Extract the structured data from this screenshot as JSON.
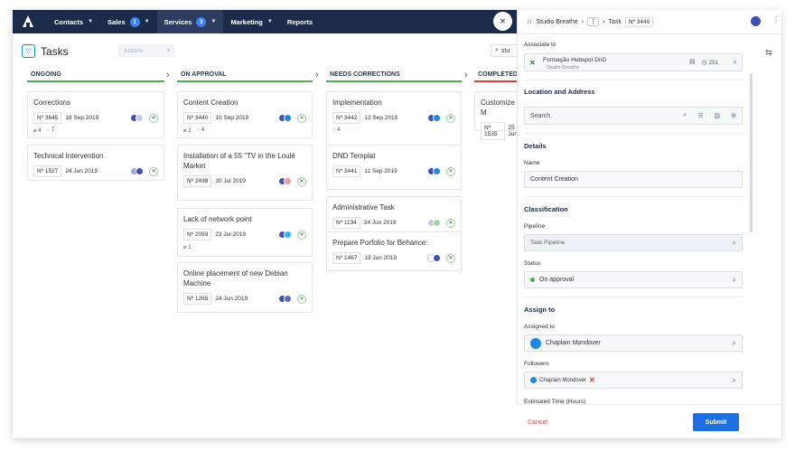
{
  "nav": {
    "items": [
      {
        "label": "Contacts",
        "badge": null,
        "has_chevron": true
      },
      {
        "label": "Sales",
        "badge": "1",
        "has_chevron": true
      },
      {
        "label": "Services",
        "badge": "3",
        "has_chevron": true,
        "active": true
      },
      {
        "label": "Marketing",
        "badge": null,
        "has_chevron": true
      },
      {
        "label": "Reports",
        "badge": null,
        "has_chevron": false
      }
    ],
    "close_glyph": "×"
  },
  "board": {
    "title": "Tasks",
    "actions_placeholder": "Actions",
    "search_value": "stu",
    "columns": [
      {
        "label": "ONGOING",
        "color": "green"
      },
      {
        "label": "ON APPROVAL",
        "color": "green"
      },
      {
        "label": "NEEDS CORRECTIONS",
        "color": "green"
      },
      {
        "label": "COMPLETED",
        "color": "red"
      }
    ],
    "cards": {
      "ongoing": [
        {
          "title": "Corrections",
          "number": "Nº 3645",
          "date": "18 Sep 2019",
          "attachments": "4",
          "comments": "7",
          "dots": [
            "#3f51b5",
            "#c5cae9"
          ]
        },
        {
          "title": "Technical Intervention",
          "number": "Nº 1527",
          "date": "24 Jun 2019",
          "dots": [
            "#9fa8da",
            "#3f51b5"
          ]
        }
      ],
      "approval": [
        {
          "title": "Content Creation",
          "number": "Nº 3440",
          "date": "10 Sep 2019",
          "attachments": "2",
          "comments": "4",
          "dots": [
            "#3f51b5",
            "#1e88e5"
          ]
        },
        {
          "title": "Installation of a 55 \"TV in the Loulé Market",
          "number": "Nº 2498",
          "date": "30 Jul 2019",
          "dots": [
            "#3f51b5",
            "#ef9a9a"
          ]
        },
        {
          "title": "Lack of network point",
          "number": "Nº 2059",
          "date": "23 Jul 2019",
          "attachments": "1",
          "dots": [
            "#3f51b5",
            "#29b6f6"
          ]
        },
        {
          "title": "Online placement of new Debian Machine",
          "number": "Nº 1265",
          "date": "24 Jun 2019",
          "dots": [
            "#3f51b5",
            "#5c6bc0"
          ]
        }
      ],
      "corrections": [
        {
          "title": "Implementation",
          "number": "Nº 3442",
          "date": "13 Sep 2019",
          "comments": "4",
          "dots": [
            "#3f51b5",
            "#1e88e5"
          ]
        },
        {
          "title": "DND Templat",
          "number": "Nº 3441",
          "date": "11 Sep 2019",
          "dots": [
            "#3f51b5",
            "#1e88e5"
          ]
        },
        {
          "title": "Administrative Task",
          "number": "Nº 1134",
          "date": "24 Jun 2019",
          "dots": [
            "#c5cae9",
            "#a5d6a7"
          ]
        },
        {
          "title": "Prepare Porfolio for Behance:",
          "number": "Nº 1467",
          "date": "19 Jun 2019",
          "dots": [
            "#ffffff",
            "#3f51b5"
          ]
        }
      ],
      "completed": [
        {
          "title": "Customize M",
          "number": "Nº 1535",
          "date": "25 Jun"
        }
      ]
    }
  },
  "panel": {
    "breadcrumb_brand": "Studio Breathe",
    "breadcrumb_dots": "⋮",
    "breadcrumb_task": "Task",
    "task_number": "Nº 3440",
    "associate": {
      "label": "Associate to",
      "name": "Formação Hubspot DnD",
      "company": "Studio Breathe",
      "score": "251"
    },
    "location": {
      "title": "Location and Address",
      "search_placeholder": "Search"
    },
    "details": {
      "title": "Details",
      "name_label": "Name",
      "name_value": "Content Creation"
    },
    "classification": {
      "title": "Classification",
      "pipeline_label": "Pipeline",
      "pipeline_value": "Task Pipeline",
      "status_label": "Status",
      "status_value": "On approval"
    },
    "assign": {
      "title": "Assign to",
      "assigned_label": "Assigned to",
      "assigned_value": "Chaplain Mondover",
      "followers_label": "Followers",
      "follower_value": "Chaplain Mondover",
      "estimated_label": "Estimated Time (Hours)"
    },
    "footer": {
      "cancel": "Cancel",
      "submit": "Submit"
    }
  }
}
